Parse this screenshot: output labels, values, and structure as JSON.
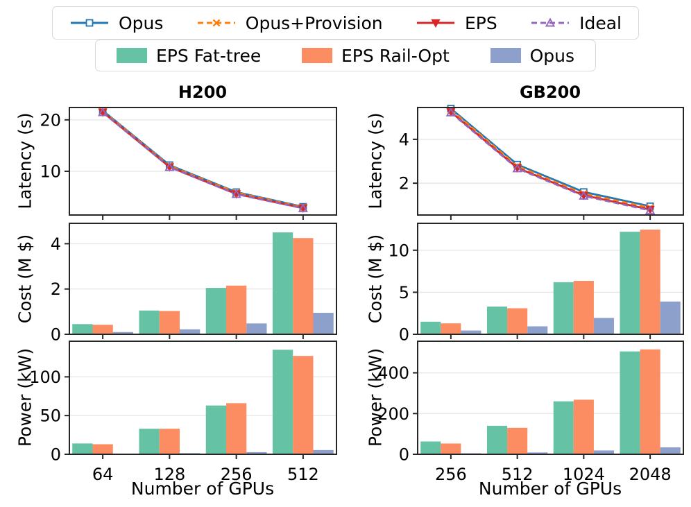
{
  "figure": {
    "colors": {
      "frame": "#262626",
      "grid": "#e7e7e7",
      "background": "#ffffff",
      "legend_border": "#d9d9d9"
    },
    "line_legend": [
      {
        "label": "Opus",
        "color": "#1f77b4",
        "dash": "solid",
        "marker": "square"
      },
      {
        "label": "Opus+Provision",
        "color": "#ff7f0e",
        "dash": "dashed",
        "marker": "x"
      },
      {
        "label": "EPS",
        "color": "#d62728",
        "dash": "solid",
        "marker": "triangle-down"
      },
      {
        "label": "Ideal",
        "color": "#9467bd",
        "dash": "dashed",
        "marker": "triangle-up"
      }
    ],
    "bar_legend": [
      {
        "label": "EPS Fat-tree",
        "color": "#66c2a5"
      },
      {
        "label": "EPS Rail-Opt",
        "color": "#fc8d62"
      },
      {
        "label": "Opus",
        "color": "#8da0cb"
      }
    ],
    "columns": [
      {
        "title": "H200",
        "xlabel": "Number of GPUs"
      },
      {
        "title": "GB200",
        "xlabel": "Number of GPUs"
      }
    ]
  },
  "chart_data": [
    {
      "type": "line",
      "panel": "h200-latency",
      "title": "H200",
      "ylabel": "Latency (s)",
      "categories": [
        64,
        128,
        256,
        512
      ],
      "yticks": [
        10,
        20
      ],
      "ylim": [
        1.5,
        22.4
      ],
      "grid": true,
      "series": [
        {
          "name": "Opus",
          "color": "#1f77b4",
          "dash": "solid",
          "marker": "square",
          "values": [
            21.8,
            11.2,
            5.95,
            3.1
          ]
        },
        {
          "name": "Opus+Provision",
          "color": "#ff7f0e",
          "dash": "dashed",
          "marker": "x",
          "values": [
            21.7,
            11.05,
            5.85,
            3.0
          ]
        },
        {
          "name": "EPS",
          "color": "#d62728",
          "dash": "solid",
          "marker": "triangle-down",
          "values": [
            21.5,
            10.85,
            5.6,
            2.85
          ]
        },
        {
          "name": "Ideal",
          "color": "#9467bd",
          "dash": "dashed",
          "marker": "triangle-up",
          "values": [
            21.45,
            10.8,
            5.55,
            2.8
          ]
        }
      ]
    },
    {
      "type": "line",
      "panel": "gb200-latency",
      "title": "GB200",
      "ylabel": "Latency (s)",
      "categories": [
        256,
        512,
        1024,
        2048
      ],
      "yticks": [
        2,
        4
      ],
      "ylim": [
        0.55,
        5.45
      ],
      "grid": true,
      "series": [
        {
          "name": "Opus",
          "color": "#1f77b4",
          "dash": "solid",
          "marker": "square",
          "values": [
            5.4,
            2.85,
            1.6,
            0.95
          ]
        },
        {
          "name": "Opus+Provision",
          "color": "#ff7f0e",
          "dash": "dashed",
          "marker": "x",
          "values": [
            5.35,
            2.78,
            1.52,
            0.88
          ]
        },
        {
          "name": "EPS",
          "color": "#d62728",
          "dash": "solid",
          "marker": "triangle-down",
          "values": [
            5.25,
            2.7,
            1.45,
            0.8
          ]
        },
        {
          "name": "Ideal",
          "color": "#9467bd",
          "dash": "dashed",
          "marker": "triangle-up",
          "values": [
            5.22,
            2.67,
            1.42,
            0.76
          ]
        }
      ]
    },
    {
      "type": "bar",
      "panel": "h200-cost",
      "ylabel": "Cost (M $)",
      "categories": [
        64,
        128,
        256,
        512
      ],
      "yticks": [
        0,
        2,
        4
      ],
      "ylim": [
        0,
        4.9
      ],
      "grid": true,
      "series": [
        {
          "name": "EPS Fat-tree",
          "color": "#66c2a5",
          "values": [
            0.45,
            1.05,
            2.05,
            4.5
          ]
        },
        {
          "name": "EPS Rail-Opt",
          "color": "#fc8d62",
          "values": [
            0.42,
            1.03,
            2.15,
            4.25
          ]
        },
        {
          "name": "Opus",
          "color": "#8da0cb",
          "values": [
            0.1,
            0.22,
            0.48,
            0.95
          ]
        }
      ]
    },
    {
      "type": "bar",
      "panel": "gb200-cost",
      "ylabel": "Cost (M $)",
      "categories": [
        256,
        512,
        1024,
        2048
      ],
      "yticks": [
        0,
        5,
        10
      ],
      "ylim": [
        0,
        13.2
      ],
      "grid": true,
      "series": [
        {
          "name": "EPS Fat-tree",
          "color": "#66c2a5",
          "values": [
            1.5,
            3.3,
            6.2,
            12.2
          ]
        },
        {
          "name": "EPS Rail-Opt",
          "color": "#fc8d62",
          "values": [
            1.3,
            3.1,
            6.35,
            12.45
          ]
        },
        {
          "name": "Opus",
          "color": "#8da0cb",
          "values": [
            0.45,
            0.95,
            1.95,
            3.9
          ]
        }
      ]
    },
    {
      "type": "bar",
      "panel": "h200-power",
      "ylabel": "Power (kW)",
      "categories": [
        64,
        128,
        256,
        512
      ],
      "yticks": [
        0,
        50,
        100
      ],
      "ylim": [
        0,
        146
      ],
      "grid": true,
      "series": [
        {
          "name": "EPS Fat-tree",
          "color": "#66c2a5",
          "values": [
            14,
            33,
            63,
            135
          ]
        },
        {
          "name": "EPS Rail-Opt",
          "color": "#fc8d62",
          "values": [
            13,
            33,
            66,
            127
          ]
        },
        {
          "name": "Opus",
          "color": "#8da0cb",
          "values": [
            0.6,
            1.5,
            2.8,
            5.5
          ]
        }
      ]
    },
    {
      "type": "bar",
      "panel": "gb200-power",
      "ylabel": "Power (kW)",
      "categories": [
        256,
        512,
        1024,
        2048
      ],
      "yticks": [
        0,
        200,
        400
      ],
      "ylim": [
        0,
        555
      ],
      "grid": true,
      "series": [
        {
          "name": "EPS Fat-tree",
          "color": "#66c2a5",
          "values": [
            63,
            140,
            260,
            505
          ]
        },
        {
          "name": "EPS Rail-Opt",
          "color": "#fc8d62",
          "values": [
            53,
            130,
            268,
            515
          ]
        },
        {
          "name": "Opus",
          "color": "#8da0cb",
          "values": [
            5,
            9,
            19,
            34
          ]
        }
      ]
    }
  ]
}
